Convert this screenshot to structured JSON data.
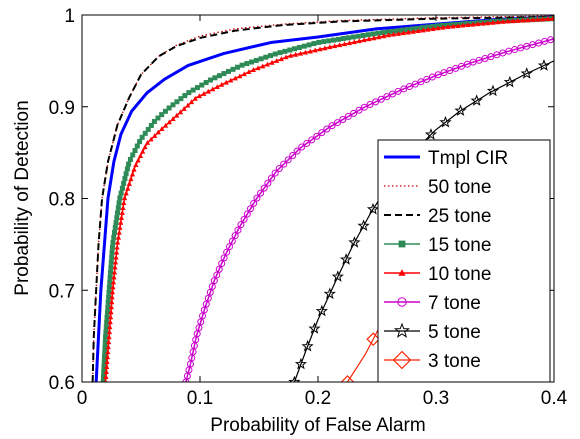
{
  "chart_data": {
    "type": "line",
    "xlabel": "Probability of False Alarm",
    "ylabel": "Probability of Detection",
    "xlim": [
      0,
      0.4
    ],
    "ylim": [
      0.6,
      1
    ],
    "x_ticks": [
      0,
      0.1,
      0.2,
      0.3,
      0.4
    ],
    "x_tick_labels": [
      "0",
      "0.1",
      "0.2",
      "0.3",
      "0.4"
    ],
    "y_ticks": [
      0.6,
      0.7,
      0.8,
      0.9,
      1
    ],
    "y_tick_labels": [
      "0.6",
      "0.7",
      "0.8",
      "0.9",
      "1"
    ],
    "grid": false,
    "legend_position": "lower-right",
    "series": [
      {
        "name": "Tmpl CIR",
        "color": "#0000ff",
        "dash": "solid",
        "marker": "none",
        "width": 3,
        "points": [
          [
            0.012,
            0.6
          ],
          [
            0.014,
            0.65
          ],
          [
            0.016,
            0.7
          ],
          [
            0.019,
            0.75
          ],
          [
            0.022,
            0.8
          ],
          [
            0.027,
            0.84
          ],
          [
            0.033,
            0.87
          ],
          [
            0.042,
            0.895
          ],
          [
            0.055,
            0.915
          ],
          [
            0.07,
            0.93
          ],
          [
            0.09,
            0.945
          ],
          [
            0.12,
            0.958
          ],
          [
            0.16,
            0.97
          ],
          [
            0.2,
            0.976
          ],
          [
            0.25,
            0.985
          ],
          [
            0.3,
            0.99
          ],
          [
            0.35,
            0.995
          ],
          [
            0.4,
            0.998
          ]
        ]
      },
      {
        "name": "50 tone",
        "color": "#cc0000",
        "dash": "dotted",
        "marker": "none",
        "width": 1.3,
        "points": [
          [
            0.009,
            0.6
          ],
          [
            0.01,
            0.65
          ],
          [
            0.012,
            0.7
          ],
          [
            0.014,
            0.75
          ],
          [
            0.017,
            0.8
          ],
          [
            0.022,
            0.84
          ],
          [
            0.03,
            0.88
          ],
          [
            0.04,
            0.91
          ],
          [
            0.05,
            0.935
          ],
          [
            0.065,
            0.955
          ],
          [
            0.08,
            0.967
          ],
          [
            0.1,
            0.977
          ],
          [
            0.13,
            0.985
          ],
          [
            0.17,
            0.99
          ],
          [
            0.22,
            0.994
          ],
          [
            0.3,
            0.997
          ],
          [
            0.4,
            0.999
          ]
        ]
      },
      {
        "name": "25 tone",
        "color": "#000000",
        "dash": "dashed",
        "marker": "none",
        "width": 2,
        "points": [
          [
            0.009,
            0.6
          ],
          [
            0.01,
            0.65
          ],
          [
            0.012,
            0.7
          ],
          [
            0.014,
            0.75
          ],
          [
            0.017,
            0.8
          ],
          [
            0.022,
            0.84
          ],
          [
            0.03,
            0.88
          ],
          [
            0.04,
            0.91
          ],
          [
            0.05,
            0.935
          ],
          [
            0.065,
            0.955
          ],
          [
            0.08,
            0.966
          ],
          [
            0.1,
            0.975
          ],
          [
            0.13,
            0.983
          ],
          [
            0.17,
            0.989
          ],
          [
            0.22,
            0.993
          ],
          [
            0.3,
            0.996
          ],
          [
            0.4,
            0.998
          ]
        ]
      },
      {
        "name": "15 tone",
        "color": "#2e8b57",
        "dash": "solid",
        "marker": "square",
        "width": 1.5,
        "points": [
          [
            0.018,
            0.6
          ],
          [
            0.02,
            0.65
          ],
          [
            0.023,
            0.7
          ],
          [
            0.026,
            0.75
          ],
          [
            0.032,
            0.8
          ],
          [
            0.04,
            0.84
          ],
          [
            0.05,
            0.865
          ],
          [
            0.062,
            0.885
          ],
          [
            0.075,
            0.9
          ],
          [
            0.09,
            0.915
          ],
          [
            0.11,
            0.93
          ],
          [
            0.135,
            0.945
          ],
          [
            0.165,
            0.958
          ],
          [
            0.2,
            0.97
          ],
          [
            0.25,
            0.98
          ],
          [
            0.3,
            0.988
          ],
          [
            0.35,
            0.993
          ],
          [
            0.4,
            0.996
          ]
        ]
      },
      {
        "name": "10 tone",
        "color": "#ff0000",
        "dash": "solid",
        "marker": "triangle",
        "width": 1.5,
        "points": [
          [
            0.02,
            0.6
          ],
          [
            0.023,
            0.65
          ],
          [
            0.026,
            0.7
          ],
          [
            0.03,
            0.75
          ],
          [
            0.036,
            0.8
          ],
          [
            0.045,
            0.835
          ],
          [
            0.055,
            0.86
          ],
          [
            0.067,
            0.875
          ],
          [
            0.08,
            0.89
          ],
          [
            0.097,
            0.91
          ],
          [
            0.12,
            0.925
          ],
          [
            0.145,
            0.94
          ],
          [
            0.175,
            0.955
          ],
          [
            0.21,
            0.965
          ],
          [
            0.26,
            0.978
          ],
          [
            0.31,
            0.987
          ],
          [
            0.36,
            0.993
          ],
          [
            0.4,
            0.996
          ]
        ]
      },
      {
        "name": "7 tone",
        "color": "#cc00cc",
        "dash": "solid",
        "marker": "circle",
        "width": 1.5,
        "points": [
          [
            0.088,
            0.6
          ],
          [
            0.092,
            0.62
          ],
          [
            0.097,
            0.65
          ],
          [
            0.104,
            0.68
          ],
          [
            0.112,
            0.71
          ],
          [
            0.122,
            0.74
          ],
          [
            0.134,
            0.77
          ],
          [
            0.148,
            0.8
          ],
          [
            0.165,
            0.83
          ],
          [
            0.185,
            0.855
          ],
          [
            0.21,
            0.878
          ],
          [
            0.24,
            0.9
          ],
          [
            0.27,
            0.918
          ],
          [
            0.3,
            0.934
          ],
          [
            0.33,
            0.948
          ],
          [
            0.36,
            0.96
          ],
          [
            0.4,
            0.974
          ]
        ]
      },
      {
        "name": "5 tone",
        "color": "#000000",
        "dash": "solid",
        "marker": "star",
        "width": 1.2,
        "points": [
          [
            0.18,
            0.6
          ],
          [
            0.19,
            0.635
          ],
          [
            0.2,
            0.668
          ],
          [
            0.215,
            0.71
          ],
          [
            0.23,
            0.75
          ],
          [
            0.245,
            0.785
          ],
          [
            0.26,
            0.815
          ],
          [
            0.28,
            0.85
          ],
          [
            0.3,
            0.875
          ],
          [
            0.32,
            0.895
          ],
          [
            0.345,
            0.915
          ],
          [
            0.375,
            0.935
          ],
          [
            0.4,
            0.95
          ]
        ]
      },
      {
        "name": "3 tone",
        "color": "#ff2200",
        "dash": "solid",
        "marker": "diamond",
        "width": 1.2,
        "points": [
          [
            0.225,
            0.6
          ],
          [
            0.24,
            0.63
          ],
          [
            0.253,
            0.662
          ],
          [
            0.26,
            0.68
          ]
        ]
      }
    ]
  }
}
